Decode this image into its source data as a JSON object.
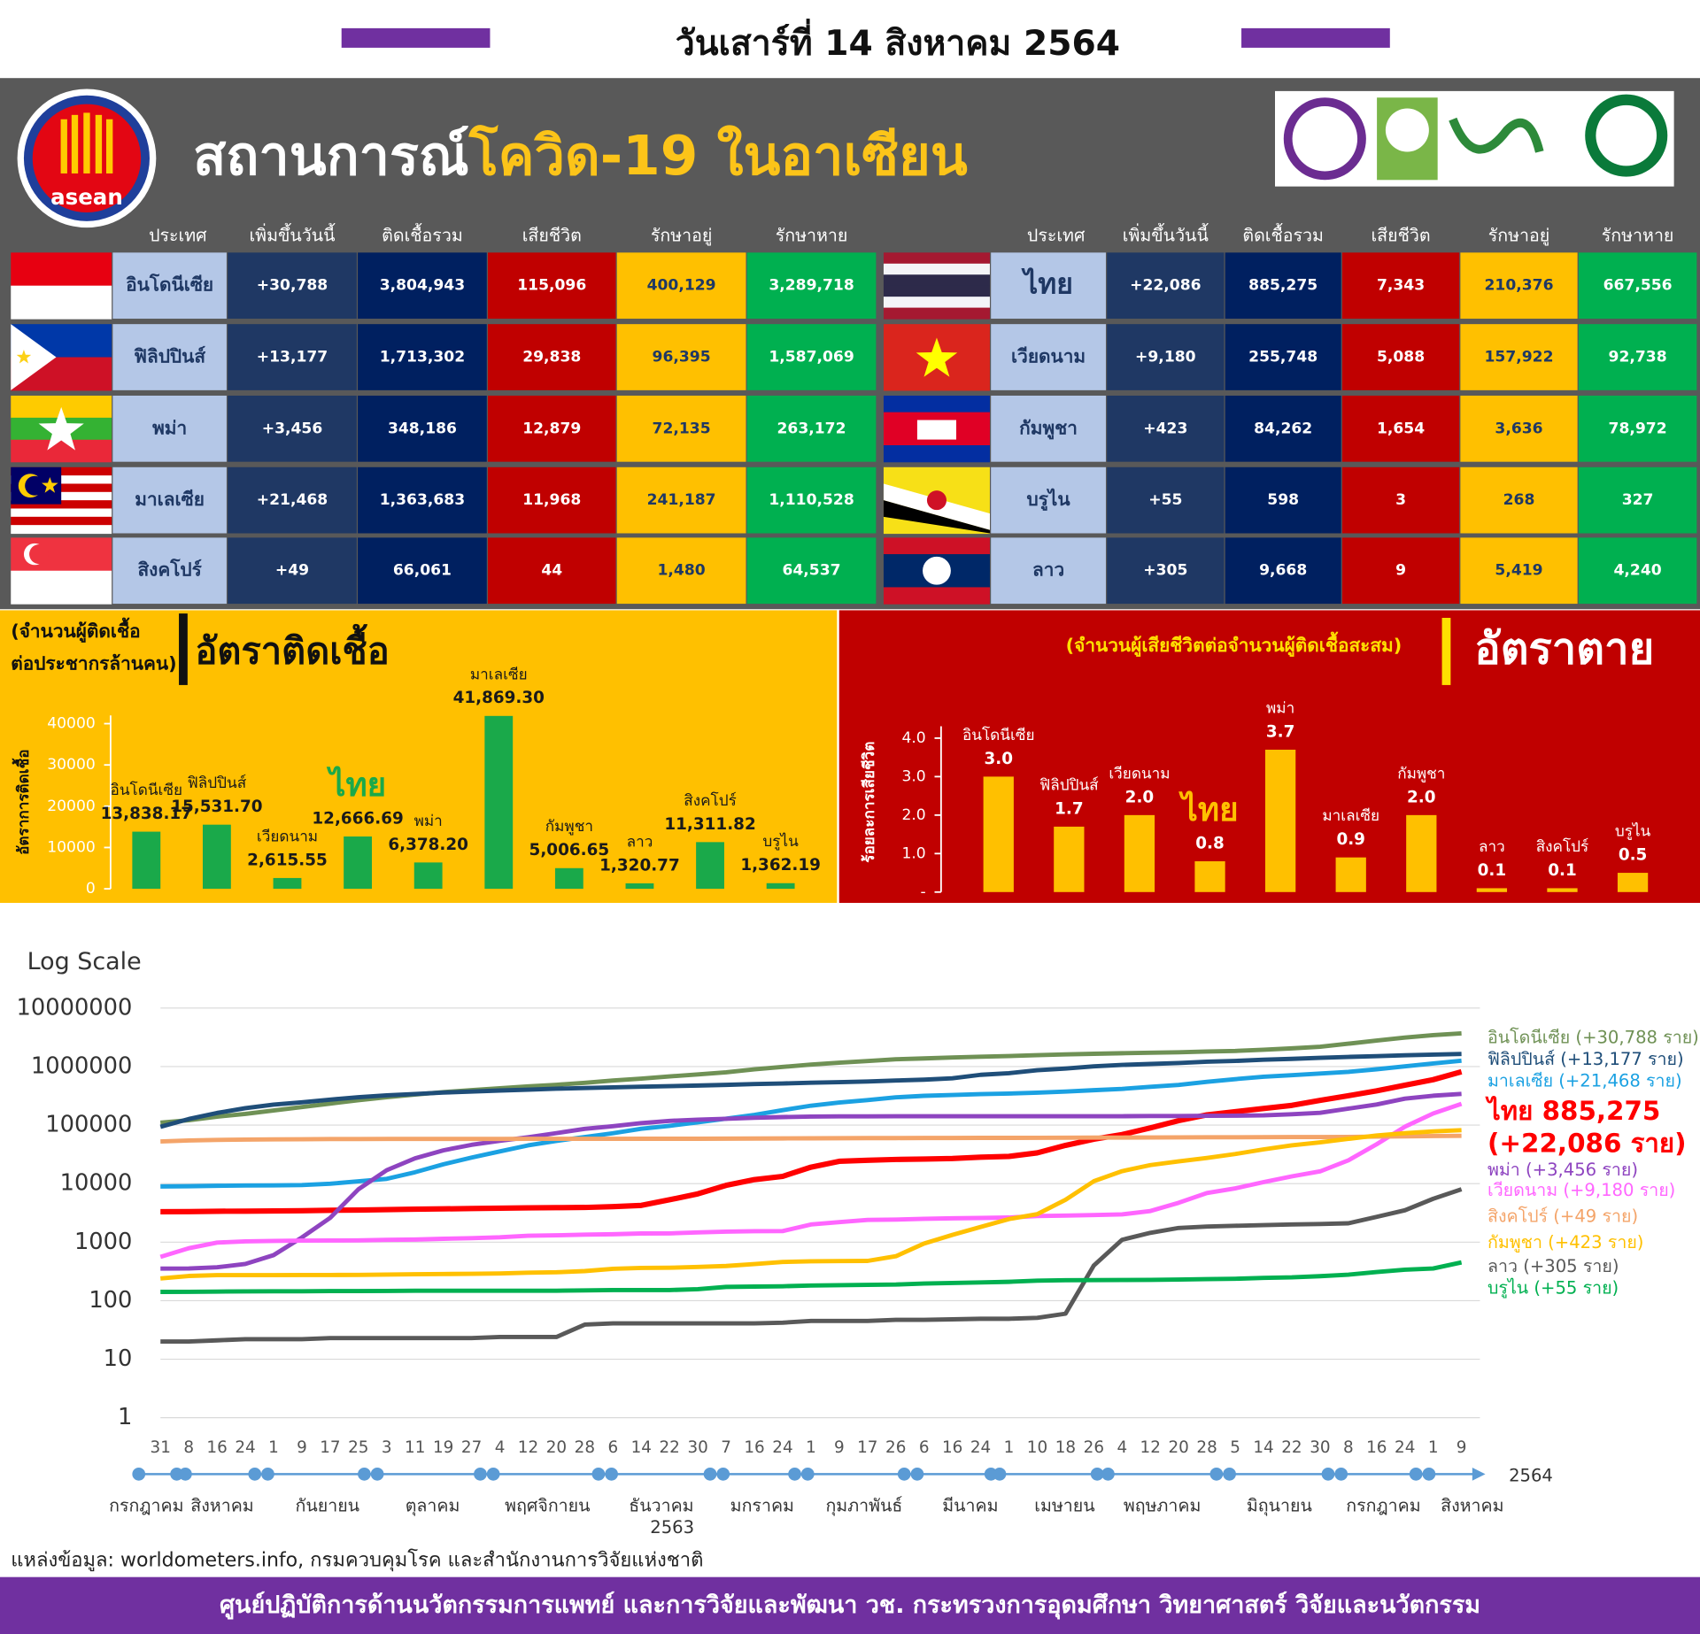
{
  "header": {
    "date": "วันเสาร์ที่ 14 สิงหาคม 2564",
    "title_main": "สถานการณ์",
    "title_highlight": "โควิด-19 ในอาเซียน",
    "logo_text": "asean"
  },
  "table": {
    "columns": [
      "ประเทศ",
      "เพิ่มขึ้นวันนี้",
      "ติดเชื้อรวม",
      "เสียชีวิต",
      "รักษาอยู่",
      "รักษาหาย"
    ],
    "left": [
      [
        "อินโดนีเซีย",
        "+30,788",
        "3,804,943",
        "115,096",
        "400,129",
        "3,289,718"
      ],
      [
        "ฟิลิปปินส์",
        "+13,177",
        "1,713,302",
        "29,838",
        "96,395",
        "1,587,069"
      ],
      [
        "พม่า",
        "+3,456",
        "348,186",
        "12,879",
        "72,135",
        "263,172"
      ],
      [
        "มาเลเซีย",
        "+21,468",
        "1,363,683",
        "11,968",
        "241,187",
        "1,110,528"
      ],
      [
        "สิงคโปร์",
        "+49",
        "66,061",
        "44",
        "1,480",
        "64,537"
      ]
    ],
    "right": [
      [
        "ไทย",
        "+22,086",
        "885,275",
        "7,343",
        "210,376",
        "667,556"
      ],
      [
        "เวียดนาม",
        "+9,180",
        "255,748",
        "5,088",
        "157,922",
        "92,738"
      ],
      [
        "กัมพูชา",
        "+423",
        "84,262",
        "1,654",
        "3,636",
        "78,972"
      ],
      [
        "บรูไน",
        "+55",
        "598",
        "3",
        "268",
        "327"
      ],
      [
        "ลาว",
        "+305",
        "9,668",
        "9",
        "5,419",
        "4,240"
      ]
    ]
  },
  "chart_data": [
    {
      "type": "bar",
      "title": "อัตราติดเชื้อ",
      "subtitle": [
        "(จำนวนผู้ติดเชื้อ",
        "ต่อประชากรล้านคน)"
      ],
      "y_label": "อัตราการติดเชื้อ",
      "categories": [
        "อินโดนีเซีย",
        "ฟิลิปปินส์",
        "เวียดนาม",
        "ไทย",
        "พม่า",
        "มาเลเซีย",
        "กัมพูชา",
        "ลาว",
        "สิงคโปร์",
        "บรูไน"
      ],
      "values": [
        13838.17,
        15531.7,
        2615.55,
        12666.69,
        6378.2,
        41869.3,
        5006.65,
        1320.77,
        11311.82,
        1362.19
      ],
      "value_labels": [
        "13,838.17",
        "15,531.70",
        "2,615.55",
        "12,666.69",
        "6,378.20",
        "41,869.30",
        "5,006.65",
        "1,320.77",
        "11,311.82",
        "1,362.19"
      ],
      "color": "#1aa94a",
      "ylim": [
        0,
        42000
      ],
      "yticks": [
        0,
        10000,
        20000,
        30000,
        40000
      ],
      "highlight": "ไทย"
    },
    {
      "type": "bar",
      "title": "อัตราตาย",
      "subtitle": [
        "(จำนวนผู้เสียชีวิตต่อจำนวนผู้ติดเชื้อสะสม)"
      ],
      "y_label": "ร้อยละการเสียชีวิต",
      "categories": [
        "อินโดนีเซีย",
        "ฟิลิปปินส์",
        "เวียดนาม",
        "ไทย",
        "พม่า",
        "มาเลเซีย",
        "กัมพูชา",
        "ลาว",
        "สิงคโปร์",
        "บรูไน"
      ],
      "values": [
        3.0,
        1.7,
        2.0,
        0.8,
        3.7,
        0.9,
        2.0,
        0.1,
        0.1,
        0.5
      ],
      "value_labels": [
        "3.0",
        "1.7",
        "2.0",
        "0.8",
        "3.7",
        "0.9",
        "2.0",
        "0.1",
        "0.1",
        "0.5"
      ],
      "color": "#ffc000",
      "ylim": [
        0,
        4
      ],
      "yticks": [
        {
          "value": 0,
          "label": "-"
        },
        {
          "value": 1,
          "label": "1.0"
        },
        {
          "value": 2,
          "label": "2.0"
        },
        {
          "value": 3,
          "label": "3.0"
        },
        {
          "value": 4,
          "label": "4.0"
        }
      ],
      "highlight": "ไทย"
    },
    {
      "type": "line",
      "title": "Log Scale",
      "log": true,
      "grid": true,
      "categories": [
        "31",
        "8",
        "16",
        "24",
        "1",
        "9",
        "17",
        "25",
        "3",
        "11",
        "19",
        "27",
        "4",
        "12",
        "20",
        "28",
        "6",
        "14",
        "22",
        "30",
        "7",
        "16",
        "24",
        "1",
        "9",
        "17",
        "26",
        "6",
        "16",
        "24",
        "1",
        "10",
        "18",
        "26",
        "4",
        "12",
        "20",
        "28",
        "5",
        "14",
        "22",
        "30",
        "8",
        "16",
        "24",
        "1",
        "9"
      ],
      "months": [
        "กรกฎาคม",
        "สิงหาคม",
        "กันยายน",
        "ตุลาคม",
        "พฤศจิกายน",
        "ธันวาคม",
        "มกราคม",
        "กุมภาพันธ์",
        "มีนาคม",
        "เมษายน",
        "พฤษภาคม",
        "มิถุนายน",
        "กรกฎาคม",
        "สิงหาคม"
      ],
      "years": [
        "2563",
        "2564"
      ],
      "ylim": [
        1,
        10000000
      ],
      "yticks": [
        1,
        10,
        100,
        1000,
        10000,
        100000,
        1000000,
        10000000
      ],
      "series": [
        {
          "name": "อินโดนีเซีย (+30,788 ราย)",
          "color": "#6f9155",
          "values": [
            109936,
            121226,
            139549,
            155412,
            177571,
            203342,
            232628,
            266845,
            299506,
            333449,
            365240,
            396454,
            425796,
            457735,
            488310,
            527999,
            575796,
            623309,
            679368,
            735124,
            797723,
            896642,
            989262,
            1078314,
            1166079,
            1243646,
            1329074,
            1379662,
            1430458,
            1476452,
            1511712,
            1562868,
            1609300,
            1651794,
            1686373,
            1728204,
            1758898,
            1809926,
            1850206,
            1937652,
            2045345,
            2178272,
            2455912,
            2780803,
            3127826,
            3440396,
            3686740
          ]
        },
        {
          "name": "ฟิลิปปินส์ (+13,177 ราย)",
          "color": "#1f4e79",
          "values": [
            93354,
            126885,
            161253,
            194252,
            224264,
            245143,
            272934,
            299361,
            322497,
            339341,
            359169,
            373144,
            390112,
            402820,
            418818,
            429864,
            441399,
            451839,
            461505,
            474064,
            485797,
            502736,
            513619,
            528853,
            542303,
            555163,
            576352,
            597763,
            631320,
            721892,
            771497,
            864868,
            926052,
            1006428,
            1066888,
            1108826,
            1150780,
            1213115,
            1248619,
            1308352,
            1355839,
            1412559,
            1460503,
            1508586,
            1558385,
            1597689,
            1640000
          ]
        },
        {
          "name": "มาเลเซีย (+21,468 ราย)",
          "color": "#1ba1e2",
          "values": [
            8964,
            9038,
            9175,
            9296,
            9354,
            9459,
            9946,
            10919,
            12088,
            15657,
            21363,
            27805,
            35425,
            45095,
            53679,
            62690,
            72694,
            86618,
            97129,
            111082,
            128465,
            149044,
            180455,
            214959,
            242452,
            267700,
            297951,
            315632,
            327500,
            338000,
            346000,
            358000,
            373000,
            395000,
            415000,
            450000,
            486000,
            548000,
            610000,
            670000,
            710000,
            760000,
            810000,
            900000,
            1010000,
            1130000,
            1260000
          ]
        },
        {
          "name": "ไทย 885,275",
          "sub": "(+22,086 ราย)",
          "color": "#ff0000",
          "values": [
            3310,
            3330,
            3370,
            3390,
            3417,
            3445,
            3500,
            3530,
            3590,
            3660,
            3700,
            3750,
            3800,
            3850,
            3880,
            3910,
            4050,
            4250,
            5290,
            6690,
            9330,
            11700,
            13300,
            19100,
            24100,
            25000,
            25900,
            26300,
            26900,
            28300,
            29100,
            33600,
            45100,
            57500,
            68900,
            89400,
            119000,
            149000,
            170000,
            192000,
            217000,
            264000,
            317000,
            385000,
            481000,
            598000,
            815000
          ]
        },
        {
          "name": "พม่า (+3,456 ราย)",
          "color": "#8e44c0",
          "values": [
            353,
            355,
            372,
            425,
            600,
            1200,
            2600,
            8000,
            17000,
            27000,
            37000,
            46000,
            54000,
            62000,
            73000,
            86000,
            96000,
            108000,
            118000,
            124000,
            128000,
            133000,
            137000,
            140000,
            141000,
            141000,
            142000,
            142000,
            142000,
            142000,
            142000,
            142000,
            142000,
            142000,
            142000,
            143000,
            143000,
            144000,
            145000,
            147000,
            153000,
            162000,
            191000,
            225000,
            283000,
            318000,
            341000
          ]
        },
        {
          "name": "เวียดนาม (+9,180 ราย)",
          "color": "#ff66ff",
          "values": [
            560,
            789,
            983,
            1029,
            1046,
            1060,
            1068,
            1069,
            1094,
            1107,
            1139,
            1172,
            1210,
            1288,
            1306,
            1341,
            1366,
            1405,
            1411,
            1465,
            1513,
            1537,
            1548,
            2000,
            2200,
            2400,
            2432,
            2500,
            2560,
            2590,
            2630,
            2790,
            2840,
            2900,
            2980,
            3400,
            4700,
            6900,
            8300,
            10600,
            13300,
            16200,
            25000,
            47000,
            94000,
            158000,
            231000
          ]
        },
        {
          "name": "สิงคโปร์ (+49 ราย)",
          "color": "#f4a469",
          "values": [
            52512,
            54555,
            55838,
            56404,
            56948,
            57315,
            57576,
            57742,
            57819,
            57884,
            57915,
            57951,
            58015,
            58064,
            58116,
            58183,
            58242,
            58313,
            58386,
            58519,
            58629,
            58907,
            59250,
            59480,
            59699,
            59833,
            60007,
            60152,
            60288,
            60394,
            60472,
            60769,
            60973,
            61179,
            61331,
            61505,
            61799,
            62051,
            62145,
            62315,
            62448,
            62579,
            62886,
            63621,
            64314,
            65102,
            65686
          ]
        },
        {
          "name": "กัมพูชา (+423 ราย)",
          "color": "#ffc000",
          "values": [
            240,
            264,
            273,
            273,
            274,
            275,
            275,
            276,
            280,
            283,
            285,
            288,
            292,
            301,
            306,
            320,
            350,
            362,
            366,
            377,
            391,
            422,
            459,
            470,
            474,
            479,
            574,
            948,
            1331,
            1814,
            2479,
            3000,
            5300,
            11000,
            16300,
            20700,
            24000,
            27500,
            32000,
            38500,
            45000,
            50700,
            58100,
            66400,
            72500,
            78000,
            81900
          ]
        },
        {
          "name": "ลาว (+305 ราย)",
          "color": "#595959",
          "values": [
            20,
            20,
            21,
            22,
            22,
            22,
            23,
            23,
            23,
            23,
            23,
            23,
            24,
            24,
            24,
            39,
            41,
            41,
            41,
            41,
            41,
            41,
            42,
            45,
            45,
            45,
            47,
            47,
            48,
            49,
            49,
            51,
            60,
            400,
            1100,
            1440,
            1750,
            1850,
            1900,
            1950,
            2000,
            2040,
            2100,
            2700,
            3500,
            5500,
            8000
          ]
        },
        {
          "name": "บรูไน (+55 ราย)",
          "color": "#00b050",
          "values": [
            141,
            142,
            143,
            144,
            145,
            145,
            146,
            146,
            147,
            148,
            148,
            148,
            148,
            148,
            148,
            150,
            152,
            152,
            152,
            157,
            172,
            174,
            176,
            182,
            184,
            186,
            189,
            196,
            200,
            205,
            210,
            220,
            224,
            225,
            226,
            227,
            230,
            234,
            237,
            245,
            250,
            262,
            278,
            308,
            339,
            355,
            450
          ]
        }
      ]
    }
  ],
  "footer": {
    "source": "แหล่งข้อมูล: worldometers.info, กรมควบคุมโรค และสำนักงานการวิจัยแห่งชาติ",
    "org": "ศูนย์ปฏิบัติการด้านนวัตกรรมการแพทย์ และการวิจัยและพัฒนา วช.  กระทรวงการอุดมศึกษา วิทยาศาสตร์ วิจัยและนวัตกรรม"
  }
}
